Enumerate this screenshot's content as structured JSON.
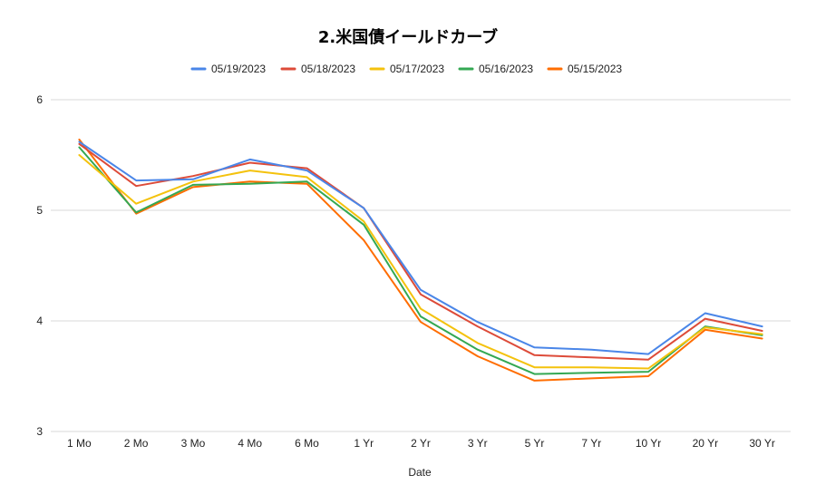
{
  "chart_data": {
    "type": "line",
    "title": "2.米国債イールドカーブ",
    "xlabel": "Date",
    "ylabel": "",
    "categories": [
      "1 Mo",
      "2 Mo",
      "3 Mo",
      "4 Mo",
      "6 Mo",
      "1 Yr",
      "2 Yr",
      "3 Yr",
      "5 Yr",
      "7 Yr",
      "10 Yr",
      "20 Yr",
      "30 Yr"
    ],
    "ylim": [
      3,
      6
    ],
    "yticks": [
      "3",
      "4",
      "5",
      "6"
    ],
    "grid": true,
    "legend_position": "top",
    "series": [
      {
        "name": "05/19/2023",
        "color": "#4a86e8",
        "values": [
          5.62,
          5.27,
          5.28,
          5.46,
          5.36,
          5.02,
          4.28,
          3.99,
          3.76,
          3.74,
          3.7,
          4.07,
          3.95
        ]
      },
      {
        "name": "05/18/2023",
        "color": "#dd4b39",
        "values": [
          5.6,
          5.22,
          5.31,
          5.43,
          5.38,
          5.02,
          4.24,
          3.95,
          3.69,
          3.67,
          3.65,
          4.02,
          3.91
        ]
      },
      {
        "name": "05/17/2023",
        "color": "#f4c20d",
        "values": [
          5.5,
          5.06,
          5.26,
          5.36,
          5.3,
          4.9,
          4.11,
          3.8,
          3.58,
          3.58,
          3.57,
          3.94,
          3.88
        ]
      },
      {
        "name": "05/16/2023",
        "color": "#34a853",
        "values": [
          5.57,
          4.98,
          5.23,
          5.24,
          5.26,
          4.87,
          4.04,
          3.74,
          3.52,
          3.53,
          3.54,
          3.95,
          3.87
        ]
      },
      {
        "name": "05/15/2023",
        "color": "#ff6d01",
        "values": [
          5.64,
          4.97,
          5.21,
          5.26,
          5.24,
          4.73,
          3.99,
          3.68,
          3.46,
          3.48,
          3.5,
          3.92,
          3.84
        ]
      }
    ]
  }
}
